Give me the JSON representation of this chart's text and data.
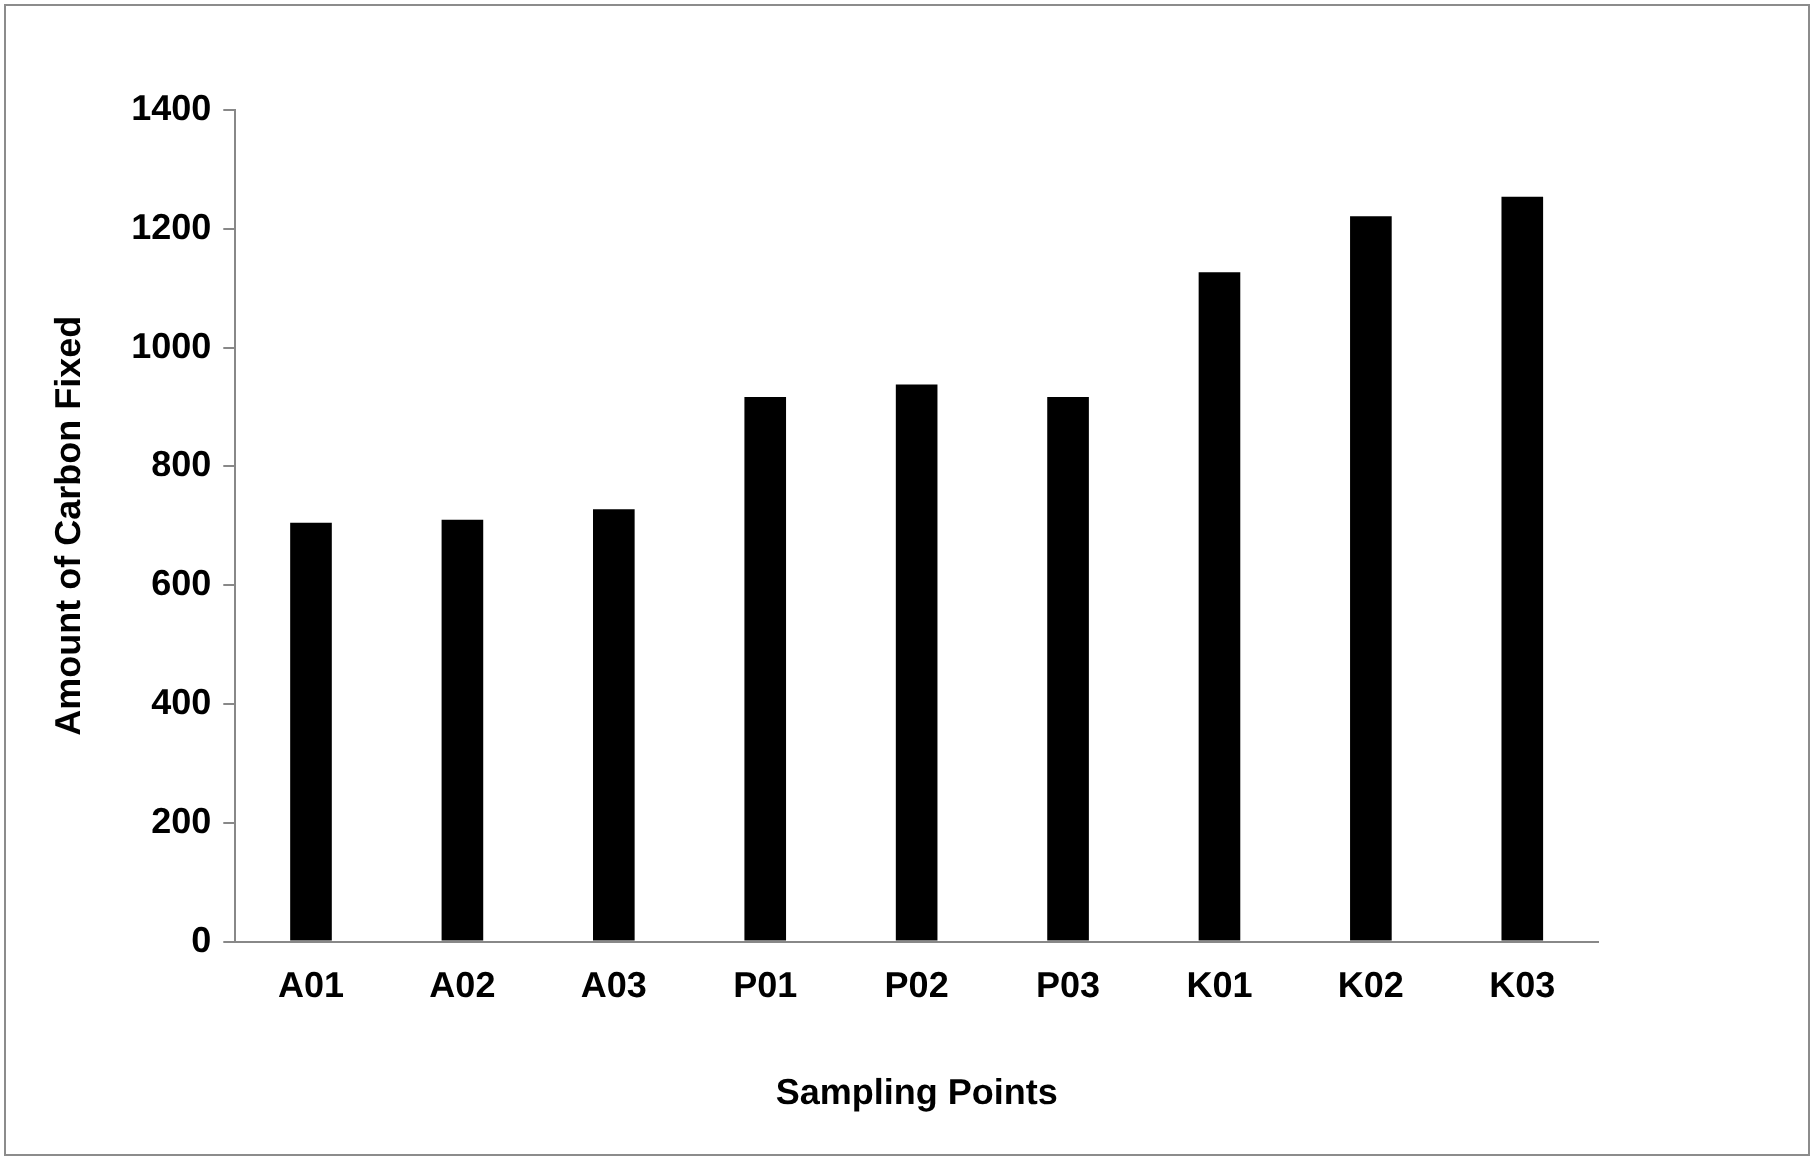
{
  "chart_data": {
    "type": "bar",
    "xlabel": "Sampling Points",
    "ylabel": "Amount of Carbon Fixed",
    "categories": [
      "A01",
      "A02",
      "A03",
      "P01",
      "P02",
      "P03",
      "K01",
      "K02",
      "K03"
    ],
    "values": [
      705,
      710,
      728,
      917,
      938,
      917,
      1127,
      1221,
      1254
    ],
    "color": "#000000",
    "ylim": [
      0,
      1400
    ],
    "yticks": [
      0,
      200,
      400,
      600,
      800,
      1000,
      1200,
      1400
    ],
    "grid": false,
    "legend": false
  }
}
